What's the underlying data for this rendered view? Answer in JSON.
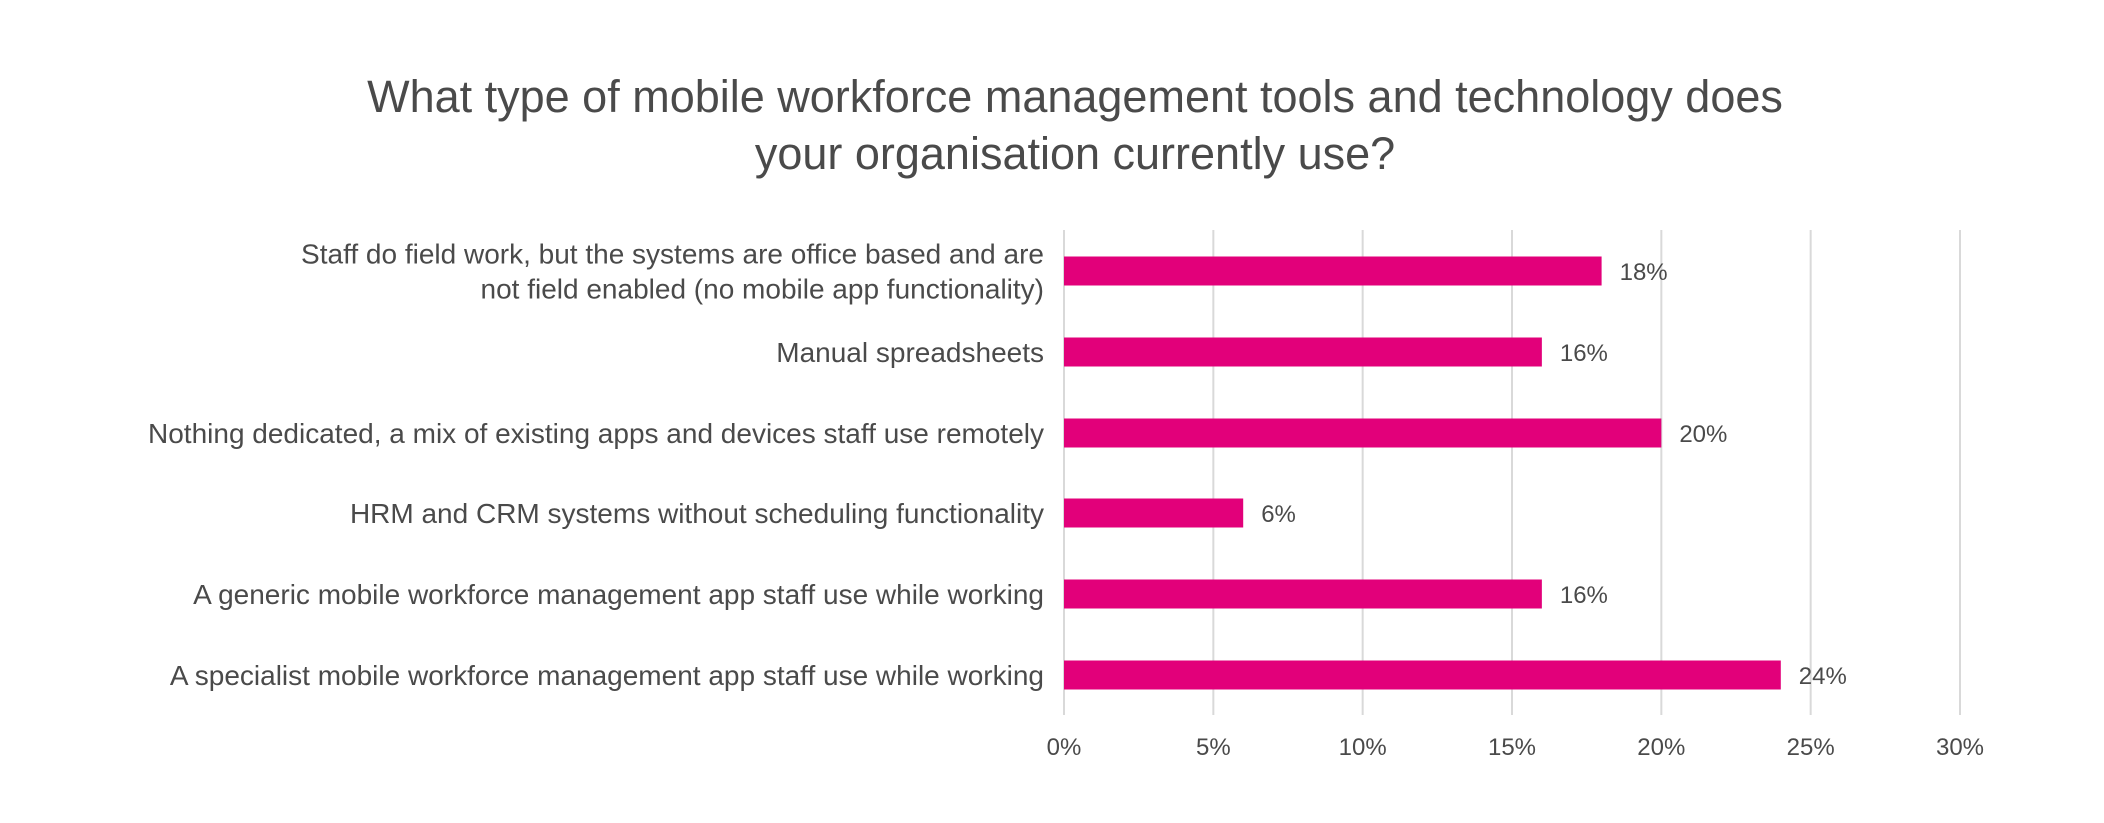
{
  "chart_data": {
    "type": "bar",
    "orientation": "horizontal",
    "title_lines": [
      "What type of mobile workforce management tools and technology does",
      "your organisation currently use?"
    ],
    "categories": [
      [
        "Staff do field work, but the systems are office based and are",
        "not field enabled (no mobile app functionality)"
      ],
      [
        "Manual spreadsheets"
      ],
      [
        "Nothing dedicated, a mix of existing apps and devices staff use remotely"
      ],
      [
        "HRM and CRM systems without scheduling functionality"
      ],
      [
        "A generic mobile workforce management app staff use while working"
      ],
      [
        "A specialist mobile workforce management app staff use while working"
      ]
    ],
    "values": [
      18,
      16,
      20,
      6,
      16,
      24
    ],
    "data_labels": [
      "18%",
      "16%",
      "20%",
      "6%",
      "16%",
      "24%"
    ],
    "x_ticks": [
      0,
      5,
      10,
      15,
      20,
      25,
      30
    ],
    "x_tick_labels": [
      "0%",
      "5%",
      "10%",
      "15%",
      "20%",
      "25%",
      "30%"
    ],
    "xlim": [
      0,
      30
    ],
    "grid": "vertical",
    "bar_color": "#e2007a",
    "grid_color": "#d9d9d9",
    "text_color": "#4a4a4a"
  }
}
